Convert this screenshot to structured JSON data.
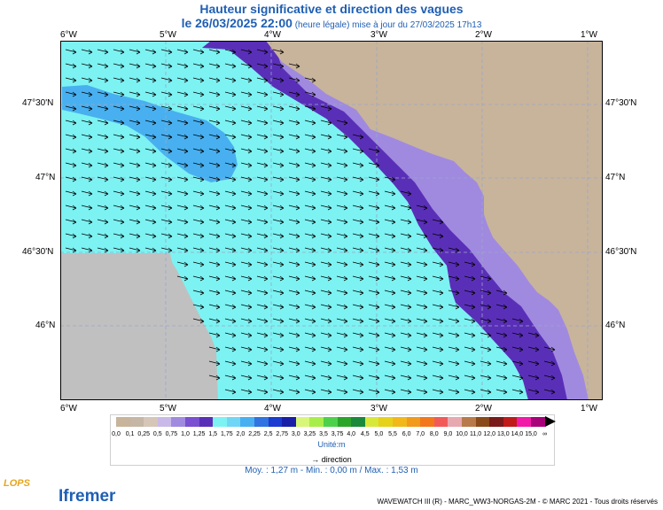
{
  "title": {
    "line1": "Hauteur significative et direction des vagues",
    "line2_main": "le 26/03/2025 22:00",
    "line2_note": " (heure légale) mise à jour du 27/03/2025 17h13"
  },
  "axes": {
    "lon_labels": [
      "6°W",
      "5°W",
      "4°W",
      "3°W",
      "2°W",
      "1°W"
    ],
    "lat_labels": [
      "47°30'N",
      "47°N",
      "46°30'N",
      "46°N"
    ]
  },
  "legend": {
    "levels": [
      "0,0",
      "0,1",
      "0,25",
      "0,5",
      "0,75",
      "1,0",
      "1,25",
      "1,5",
      "1,75",
      "2,0",
      "2,25",
      "2,5",
      "2,75",
      "3,0",
      "3,25",
      "3,5",
      "3,75",
      "4,0",
      "4,5",
      "5,0",
      "5,5",
      "6,0",
      "7,0",
      "8,0",
      "9,0",
      "10,0",
      "11,0",
      "12,0",
      "13,0",
      "14,0",
      "15,0",
      "∞"
    ],
    "colors": [
      "#c8b49b",
      "#c6b6a6",
      "#d5c6b7",
      "#c9b9e8",
      "#a08ae0",
      "#7a4fd0",
      "#5a2fb8",
      "#7df2f2",
      "#6fd6f6",
      "#48b0f0",
      "#2f74e0",
      "#1b3cd0",
      "#1a1fa8",
      "#d8f67a",
      "#a8ee4a",
      "#4ed14a",
      "#2aa52a",
      "#1a8a3a",
      "#d8e83a",
      "#e6d21a",
      "#f2b81a",
      "#f29a1a",
      "#f2781a",
      "#f25a5a",
      "#e8a8b0",
      "#b87a4a",
      "#8a4a1a",
      "#7a1a1a",
      "#c01a1a",
      "#f21aa8",
      "#a8007a"
    ],
    "unit": "Unité:m",
    "direction": "direction"
  },
  "stats": {
    "text": "Moy. : 1,27 m    -    Min. : 0,00 m / Max. : 1,53 m"
  },
  "footer": "WAVEWATCH III (R) - MARC_WW3-NORGAS-2M - © MARC 2021 - Tous droits réservés",
  "logos": {
    "lops": "LOPS",
    "ifremer": "Ifremer"
  },
  "map_colors": {
    "sea_main": "#7df2f2",
    "sea_swell": "#48b0f0",
    "coastal_band": "#5a2fb8",
    "coastal_light": "#a08ae0",
    "coastal_pale": "#c9b9e8",
    "land": "#c8b49b",
    "no_data": "#c0c0c0"
  }
}
